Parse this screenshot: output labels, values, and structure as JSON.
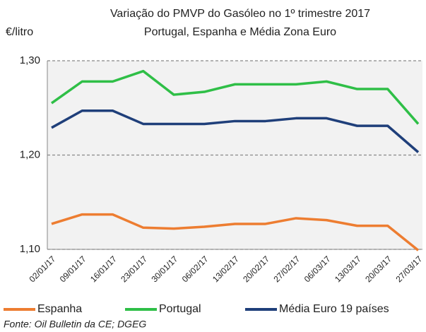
{
  "chart_data": {
    "type": "line",
    "title": "Variação do PMVP do Gasóleo no 1º trimestre 2017",
    "subtitle": "Portugal, Espanha e Média Zona Euro",
    "y_label": "€/litro",
    "source": "Fonte: Oil Bulletin da CE; DGEG",
    "categories": [
      "02/01/17",
      "09/01/17",
      "16/01/17",
      "23/01/17",
      "30/01/17",
      "06/02/17",
      "13/02/17",
      "20/02/17",
      "27/02/17",
      "06/03/17",
      "13/03/17",
      "20/03/17",
      "27/03/17"
    ],
    "series": [
      {
        "name": "Espanha",
        "color": "#ed7d31",
        "values": [
          1.127,
          1.137,
          1.137,
          1.123,
          1.122,
          1.124,
          1.127,
          1.127,
          1.133,
          1.131,
          1.125,
          1.125,
          1.099
        ]
      },
      {
        "name": "Portugal",
        "color": "#2fbf47",
        "values": [
          1.255,
          1.278,
          1.278,
          1.289,
          1.264,
          1.267,
          1.275,
          1.275,
          1.275,
          1.278,
          1.27,
          1.27,
          1.233
        ]
      },
      {
        "name": "Média Euro 19 países",
        "color": "#1f3f7a",
        "values": [
          1.229,
          1.247,
          1.247,
          1.233,
          1.233,
          1.233,
          1.236,
          1.236,
          1.239,
          1.239,
          1.231,
          1.231,
          1.203
        ]
      }
    ],
    "ylim": [
      1.1,
      1.3
    ],
    "yticks": [
      {
        "value": 1.1,
        "label": "1,10"
      },
      {
        "value": 1.2,
        "label": "1,20"
      },
      {
        "value": 1.3,
        "label": "1,30"
      }
    ],
    "grid": true,
    "legend": "bottom"
  }
}
